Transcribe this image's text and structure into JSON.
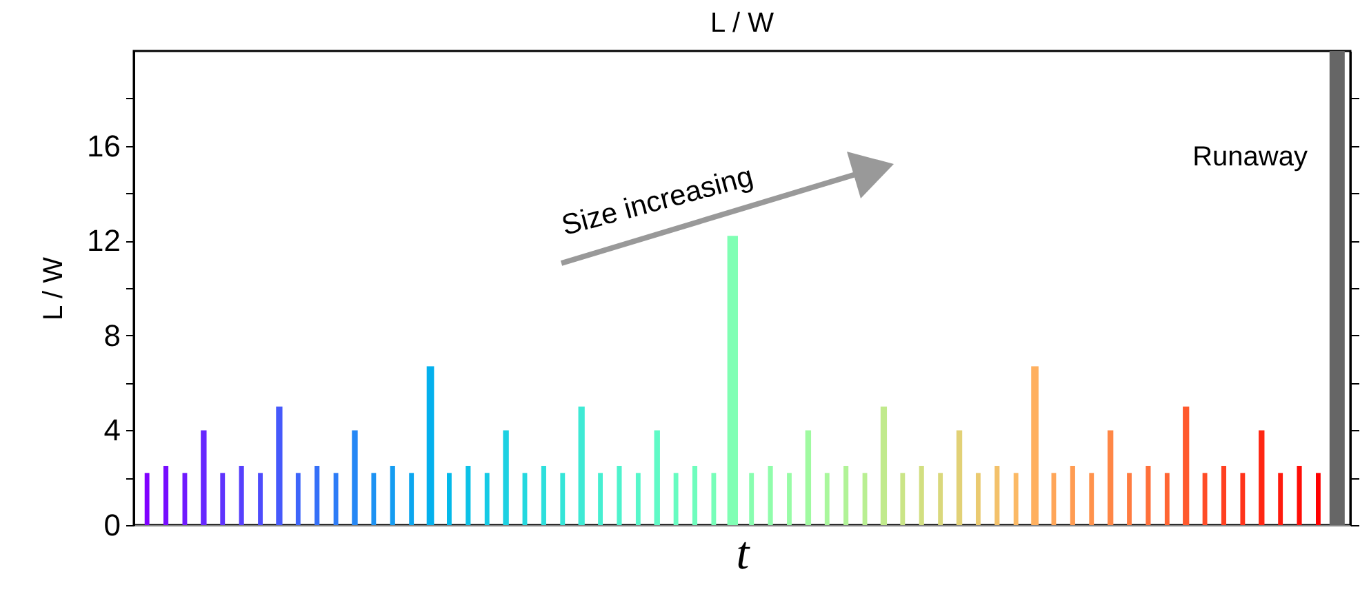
{
  "chart_data": {
    "type": "bar",
    "title": "L / W",
    "xlabel": "t",
    "ylabel": "L / W",
    "categories": [
      null,
      null,
      null,
      null,
      null,
      null,
      null,
      null,
      null,
      null,
      null,
      null,
      null,
      null,
      null,
      null,
      null,
      null,
      null,
      null,
      null,
      null,
      null,
      null,
      null,
      null,
      null,
      null,
      null,
      null,
      null,
      null,
      null,
      null,
      null,
      null,
      null,
      null,
      null,
      null,
      null,
      null,
      null,
      null,
      null,
      null,
      null,
      null,
      null,
      null,
      null,
      null,
      null,
      null,
      null,
      null,
      null,
      null,
      null,
      null,
      null,
      null,
      null,
      null
    ],
    "values": [
      2.2,
      2.5,
      2.2,
      4,
      2.2,
      2.5,
      2.2,
      5,
      2.2,
      2.5,
      2.2,
      4,
      2.2,
      2.5,
      2.2,
      6.7,
      2.2,
      2.5,
      2.2,
      4,
      2.2,
      2.5,
      2.2,
      5,
      2.2,
      2.5,
      2.2,
      4,
      2.2,
      2.5,
      2.2,
      12.2,
      2.2,
      2.5,
      2.2,
      4,
      2.2,
      2.5,
      2.2,
      5,
      2.2,
      2.5,
      2.2,
      4,
      2.2,
      2.5,
      2.2,
      6.7,
      2.2,
      2.5,
      2.2,
      4,
      2.2,
      2.5,
      2.2,
      5,
      2.2,
      2.5,
      2.2,
      4,
      2.2,
      2.5,
      2.2,
      20
    ],
    "colors": [
      "#8000ff",
      "#770dff",
      "#6f1afe",
      "#6727fe",
      "#5f33fd",
      "#5640fd",
      "#4e4cfc",
      "#4659fb",
      "#3e65fa",
      "#3570f8",
      "#2d7cf7",
      "#2587f5",
      "#1d92f3",
      "#159cf1",
      "#0ca6ef",
      "#04b0ed",
      "#04b9ea",
      "#0cc1e7",
      "#15cae5",
      "#1dd1e2",
      "#25d8df",
      "#2ddfdc",
      "#35e5d8",
      "#3eead5",
      "#46efd1",
      "#4ef3cd",
      "#56f7ca",
      "#5ffac6",
      "#67fcc1",
      "#6ffdbd",
      "#77feb9",
      "#80ffb4",
      "#88feb0",
      "#90fdab",
      "#98fca6",
      "#a0faa1",
      "#a9f79c",
      "#b1f397",
      "#b9ef92",
      "#c1ea8c",
      "#cae587",
      "#d2df81",
      "#dad87c",
      "#e2d176",
      "#eaca70",
      "#f3c16a",
      "#fbb965",
      "#ffb05f",
      "#ffa659",
      "#ff9c52",
      "#ff924c",
      "#ff8746",
      "#ff7c40",
      "#ff703a",
      "#ff6533",
      "#ff592d",
      "#ff4c27",
      "#ff4020",
      "#ff331a",
      "#ff2713",
      "#ff1a0d",
      "#ff0d06",
      "#ff0000",
      "#666666"
    ],
    "ylim": [
      0,
      20
    ],
    "yticks": [
      0,
      {
        "value": 2,
        "label": null
      },
      4,
      {
        "value": 6,
        "label": null
      },
      8,
      {
        "value": 10,
        "label": null
      },
      12,
      {
        "value": 14,
        "label": null
      },
      16,
      {
        "value": 18,
        "label": null
      }
    ],
    "annotations": [
      "Size increasing",
      "Runaway"
    ]
  }
}
